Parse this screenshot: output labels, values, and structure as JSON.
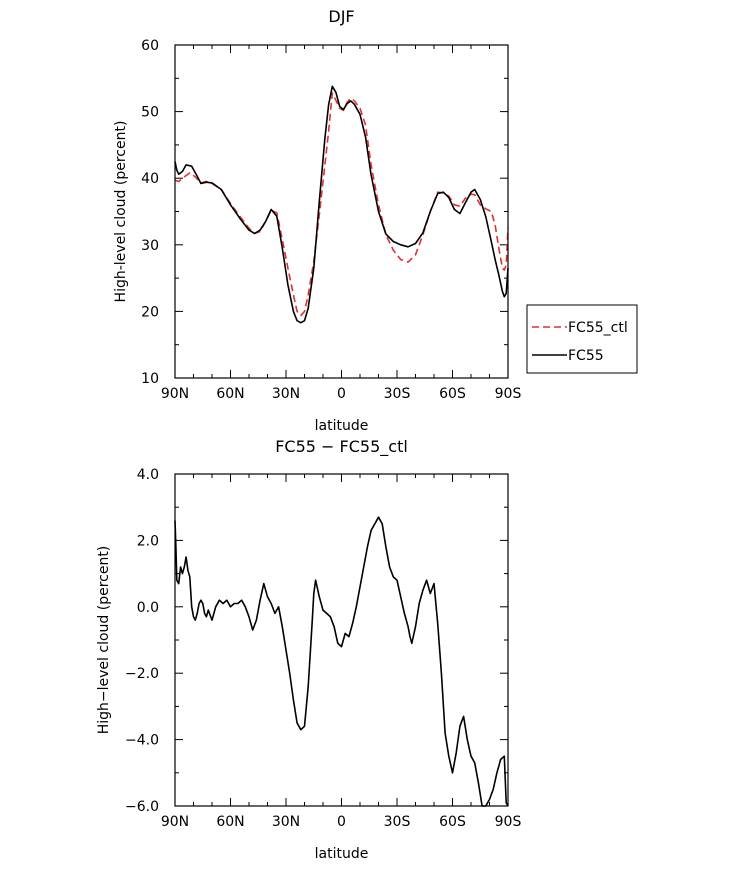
{
  "chart_data": [
    {
      "type": "line",
      "title": "DJF",
      "xlabel": "latitude",
      "ylabel": "High-level cloud (percent)",
      "xlim": [
        90,
        -90
      ],
      "ylim": [
        10,
        60
      ],
      "xtick_values": [
        90,
        60,
        30,
        0,
        -30,
        -60,
        -90
      ],
      "xtick_labels": [
        "90N",
        "60N",
        "30N",
        "0",
        "30S",
        "60S",
        "90S"
      ],
      "ytick_values": [
        10,
        20,
        30,
        40,
        50,
        60
      ],
      "ytick_labels": [
        "10",
        "20",
        "30",
        "40",
        "50",
        "60"
      ],
      "grid": false,
      "legend_position": "right-outside",
      "series": [
        {
          "name": "FC55_ctl",
          "color": "#e03030",
          "dash": "dashed",
          "x": [
            90,
            88,
            85,
            82,
            79,
            76,
            73,
            70,
            65,
            60,
            55,
            50,
            47,
            44,
            41,
            38,
            35,
            32,
            29,
            26,
            24,
            22,
            20,
            18,
            15,
            12,
            9,
            7,
            5,
            3,
            1,
            -1,
            -3,
            -5,
            -7,
            -10,
            -13,
            -16,
            -20,
            -24,
            -28,
            -32,
            -36,
            -40,
            -44,
            -48,
            -52,
            -55,
            -58,
            -61,
            -64,
            -67,
            -70,
            -72,
            -75,
            -78,
            -81,
            -83,
            -85,
            -87,
            -88,
            -89,
            -90
          ],
          "y": [
            39.7,
            39.5,
            40.2,
            40.8,
            40.2,
            39.3,
            39.5,
            39.2,
            38.3,
            36.2,
            34.3,
            32.5,
            31.7,
            32.0,
            33.5,
            35.2,
            34.8,
            30.8,
            26.5,
            22.5,
            20.0,
            19.4,
            20.0,
            22.5,
            27.5,
            34.5,
            42.0,
            47.0,
            52.8,
            51.7,
            50.5,
            50.2,
            51.4,
            52.0,
            51.6,
            50.5,
            48.0,
            42.0,
            36.0,
            31.5,
            29.2,
            27.8,
            27.4,
            28.5,
            31.5,
            35.0,
            37.9,
            37.8,
            37.3,
            36.0,
            35.8,
            37.0,
            37.6,
            37.5,
            36.0,
            35.4,
            35.0,
            33.0,
            29.5,
            26.5,
            26.2,
            27.0,
            32.5
          ]
        },
        {
          "name": "FC55",
          "color": "#000000",
          "dash": "solid",
          "x": [
            90,
            89,
            88,
            86,
            84,
            81,
            78,
            76,
            73,
            70,
            65,
            60,
            55,
            50,
            47,
            44,
            41,
            38,
            35,
            32,
            29,
            26,
            24,
            22,
            20,
            18,
            15,
            12,
            9,
            7,
            5,
            3,
            1,
            -1,
            -3,
            -5,
            -7,
            -10,
            -13,
            -16,
            -20,
            -24,
            -28,
            -32,
            -36,
            -40,
            -44,
            -48,
            -52,
            -55,
            -58,
            -61,
            -64,
            -67,
            -70,
            -72,
            -75,
            -78,
            -81,
            -83,
            -85,
            -87,
            -88,
            -89,
            -90
          ],
          "y": [
            42.5,
            41.2,
            40.6,
            41.0,
            42.0,
            41.8,
            40.3,
            39.2,
            39.4,
            39.3,
            38.3,
            36.0,
            34.0,
            32.2,
            31.7,
            32.2,
            33.5,
            35.3,
            34.3,
            29.5,
            24.0,
            20.0,
            18.6,
            18.3,
            18.6,
            20.5,
            26.5,
            36.5,
            46.0,
            51.0,
            53.8,
            52.9,
            50.8,
            50.3,
            51.2,
            51.6,
            51.1,
            49.6,
            46.2,
            40.5,
            35.0,
            31.6,
            30.5,
            30.0,
            29.7,
            30.2,
            31.8,
            35.0,
            37.7,
            37.9,
            37.1,
            35.3,
            34.7,
            36.3,
            37.9,
            38.3,
            36.8,
            34.2,
            30.5,
            27.8,
            25.5,
            23.0,
            22.2,
            22.7,
            26.5
          ]
        }
      ]
    },
    {
      "type": "line",
      "title": "FC55 − FC55_ctl",
      "xlabel": "latitude",
      "ylabel": "High−level cloud (percent)",
      "xlim": [
        90,
        -90
      ],
      "ylim": [
        -6,
        4
      ],
      "xtick_values": [
        90,
        60,
        30,
        0,
        -30,
        -60,
        -90
      ],
      "xtick_labels": [
        "90N",
        "60N",
        "30N",
        "0",
        "30S",
        "60S",
        "90S"
      ],
      "ytick_values": [
        4,
        2,
        0,
        -2,
        -4,
        -6
      ],
      "ytick_labels": [
        "4.0",
        "2.0",
        "0.0",
        "−2.0",
        "−4.0",
        "−6.0"
      ],
      "grid": false,
      "series": [
        {
          "color": "#000000",
          "x": [
            90,
            89.5,
            89,
            88,
            87,
            86,
            85,
            84,
            83,
            82,
            81,
            80,
            79,
            78,
            77,
            76,
            75,
            74,
            73,
            72,
            70,
            68,
            66,
            64,
            62,
            60,
            58,
            56,
            54,
            52,
            50,
            48,
            46,
            44,
            42,
            40,
            38,
            36,
            34,
            32,
            30,
            28,
            26,
            24,
            22,
            20,
            18,
            16,
            15,
            14,
            12,
            10,
            8,
            6,
            4,
            2,
            0,
            -2,
            -4,
            -6,
            -8,
            -10,
            -12,
            -14,
            -16,
            -18,
            -20,
            -22,
            -24,
            -26,
            -28,
            -30,
            -32,
            -34,
            -36,
            -37,
            -38,
            -40,
            -42,
            -44,
            -46,
            -48,
            -50,
            -52,
            -54,
            -56,
            -58,
            -60,
            -62,
            -64,
            -66,
            -68,
            -70,
            -72,
            -74,
            -76,
            -78,
            -80,
            -82,
            -84,
            -85,
            -86,
            -88,
            -89,
            -90
          ],
          "y": [
            2.6,
            1.8,
            0.8,
            0.7,
            1.2,
            1.0,
            1.2,
            1.5,
            1.1,
            0.9,
            0.0,
            -0.3,
            -0.4,
            -0.2,
            0.1,
            0.2,
            0.1,
            -0.2,
            -0.3,
            -0.1,
            -0.4,
            0.0,
            0.2,
            0.1,
            0.2,
            0.0,
            0.1,
            0.1,
            0.2,
            0.0,
            -0.3,
            -0.7,
            -0.4,
            0.2,
            0.7,
            0.3,
            0.1,
            -0.2,
            0.0,
            -0.6,
            -1.3,
            -2.0,
            -2.8,
            -3.5,
            -3.7,
            -3.6,
            -2.4,
            -0.6,
            0.4,
            0.8,
            0.3,
            -0.1,
            -0.2,
            -0.3,
            -0.6,
            -1.1,
            -1.2,
            -0.8,
            -0.9,
            -0.5,
            0.0,
            0.6,
            1.2,
            1.8,
            2.3,
            2.5,
            2.7,
            2.5,
            1.8,
            1.2,
            0.9,
            0.8,
            0.3,
            -0.2,
            -0.6,
            -0.9,
            -1.1,
            -0.6,
            0.1,
            0.5,
            0.8,
            0.4,
            0.7,
            -0.5,
            -2.0,
            -3.8,
            -4.5,
            -5.0,
            -4.4,
            -3.6,
            -3.3,
            -4.0,
            -4.5,
            -4.7,
            -5.3,
            -6.0,
            -6.0,
            -5.8,
            -5.5,
            -5.0,
            -4.8,
            -4.6,
            -4.5,
            -5.9,
            -6.0
          ]
        }
      ]
    }
  ]
}
